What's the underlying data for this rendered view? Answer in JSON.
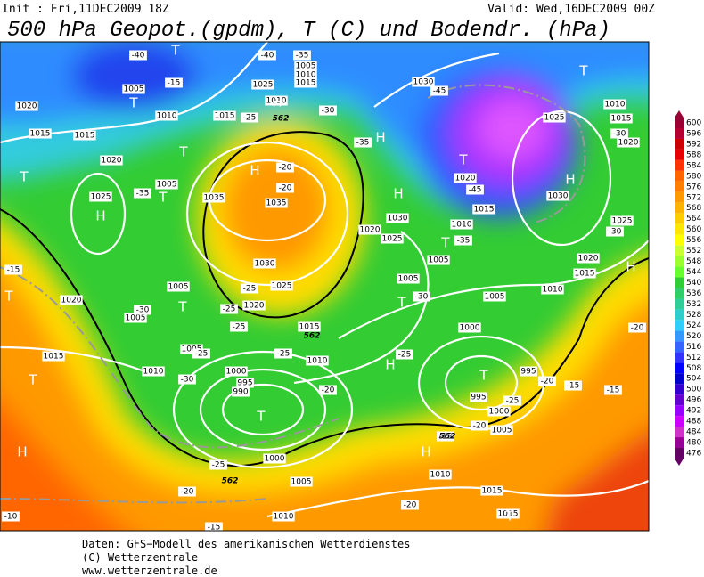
{
  "header": {
    "init": "Init : Fri,11DEC2009 18Z",
    "valid": "Valid: Wed,16DEC2009 00Z",
    "title": "500 hPa Geopot.(gpdm), T (C) und Bodendr. (hPa)"
  },
  "colorbar": {
    "ticks": [
      600,
      596,
      592,
      588,
      584,
      580,
      576,
      572,
      568,
      564,
      560,
      556,
      552,
      548,
      544,
      540,
      536,
      532,
      528,
      524,
      520,
      516,
      512,
      508,
      504,
      500,
      496,
      492,
      488,
      484,
      480,
      476
    ],
    "colors": [
      "#990033",
      "#b30033",
      "#cc0000",
      "#e60000",
      "#ff3300",
      "#ff6600",
      "#ff8000",
      "#ff9900",
      "#ffb300",
      "#ffcc00",
      "#ffe600",
      "#ffff00",
      "#ccff33",
      "#99ff33",
      "#66ff33",
      "#33cc33",
      "#33cc66",
      "#33cc99",
      "#33cccc",
      "#33ccff",
      "#3399ff",
      "#3366ff",
      "#3333ff",
      "#0000ff",
      "#0000cc",
      "#3300cc",
      "#6600cc",
      "#9900ff",
      "#cc00ff",
      "#cc33cc",
      "#990099",
      "#660066"
    ]
  },
  "map_labels": [
    "1005",
    "1020",
    "1015",
    "1015",
    "1010",
    "1020",
    "1025",
    "1005",
    "-35",
    "1035",
    "1035",
    "-20",
    "-20",
    "1030",
    "1025",
    "1020",
    "1005",
    "1005",
    "-30",
    "1015",
    "1020",
    "1010",
    "1005",
    "1000",
    "995",
    "990",
    "-30",
    "1015",
    "1010",
    "1000",
    "1005",
    "1010",
    "1030",
    "1025",
    "1020",
    "1015",
    "1030",
    "1025",
    "1020",
    "1010",
    "1005",
    "1005",
    "1005",
    "1000",
    "995",
    "995",
    "1000",
    "1005",
    "1010",
    "1015",
    "1015",
    "1010",
    "1015",
    "1020",
    "1030",
    "1025",
    "1020",
    "1015",
    "1010",
    "-45",
    "-45",
    "-35",
    "-30",
    "-25",
    "-25",
    "-20",
    "-15",
    "-15",
    "-20",
    "-30",
    "-30",
    "-25",
    "-25",
    "-25",
    "-25",
    "-20",
    "-25",
    "-20",
    "-15",
    "-10",
    "-15",
    "-20",
    "-20",
    "-15",
    "-25",
    "-40",
    "-15",
    "-30",
    "-25",
    "-35",
    "-35",
    "-40",
    "1005",
    "1010",
    "1015",
    "1025",
    "1015",
    "1010",
    "T",
    "T",
    "T",
    "H",
    "T",
    "T",
    "H",
    "H",
    "T",
    "T",
    "T",
    "H",
    "H",
    "H",
    "T",
    "H",
    "T",
    "T",
    "T",
    "H",
    "T",
    "H",
    "H",
    "T",
    "T",
    "562",
    "562",
    "562",
    "562"
  ],
  "footer": {
    "lines": [
      "Daten: GFS−Modell des amerikanischen Wetterdienstes",
      "(C) Wetterzentrale",
      "www.wetterzentrale.de"
    ]
  }
}
